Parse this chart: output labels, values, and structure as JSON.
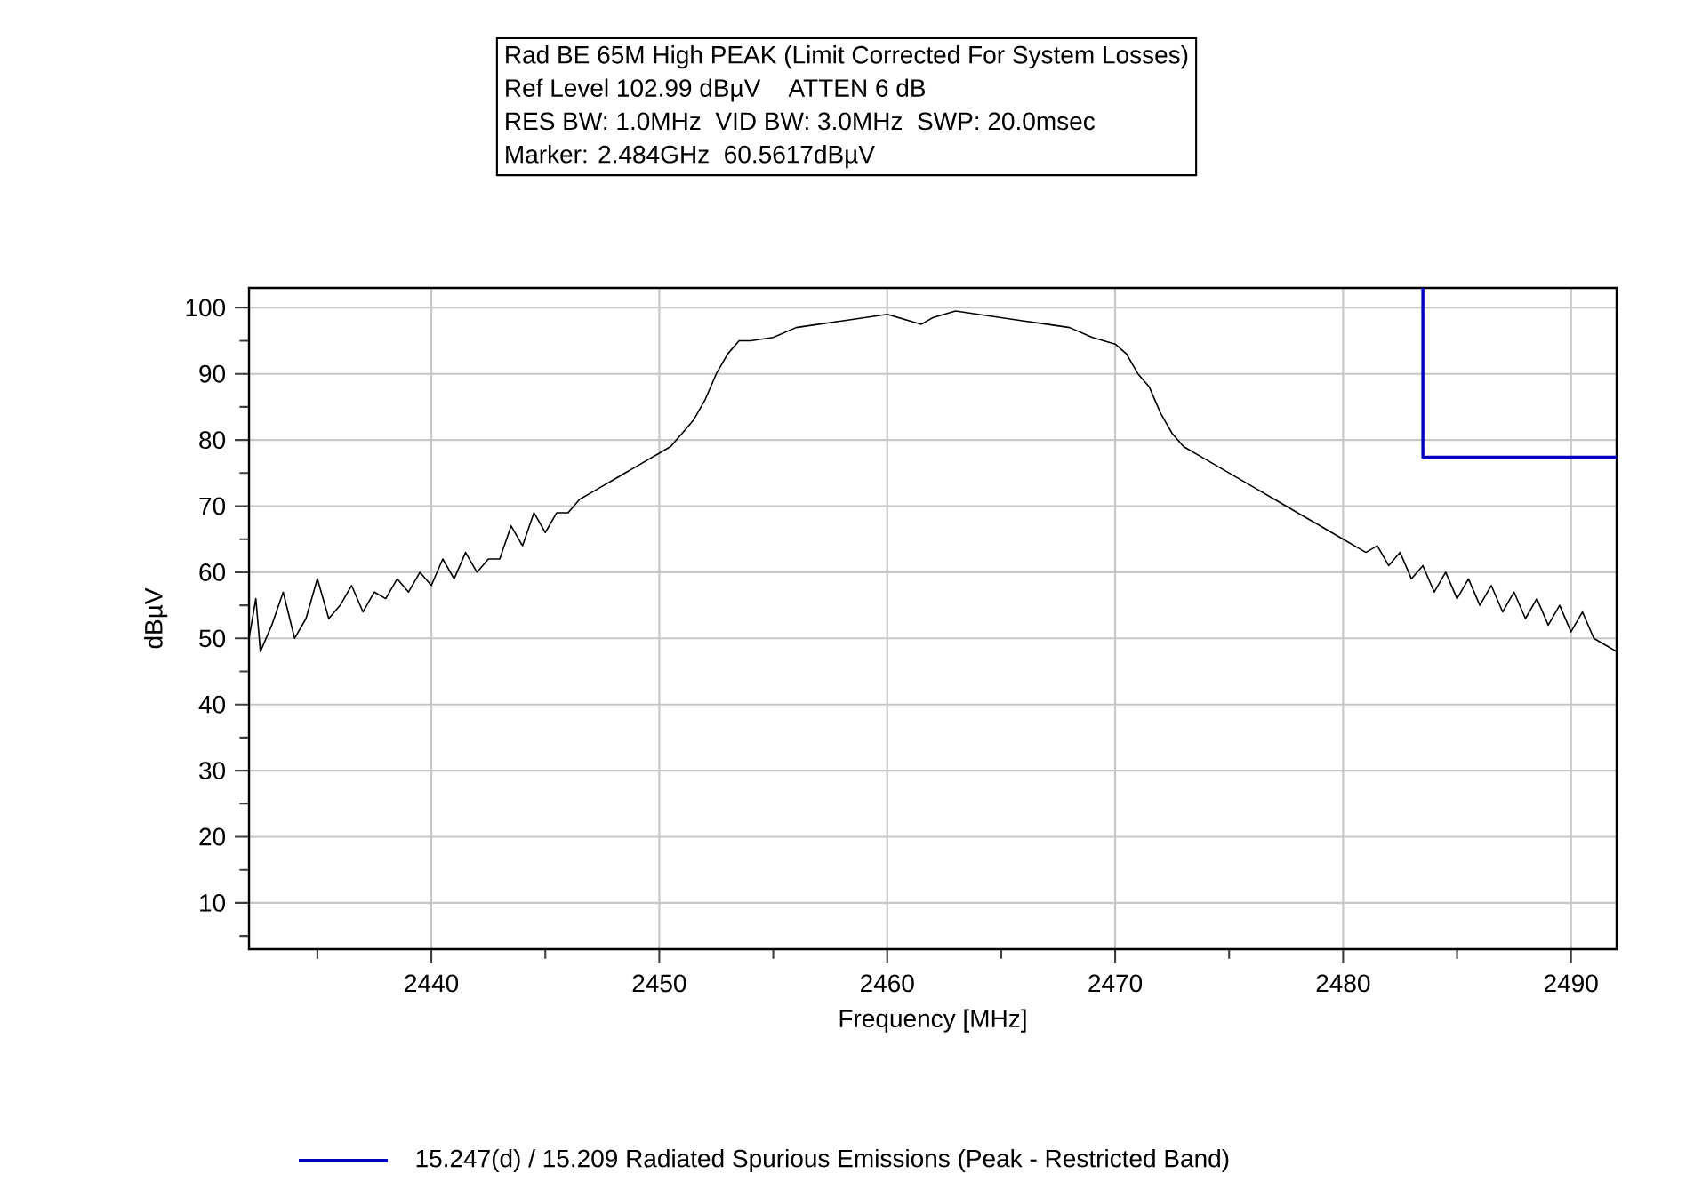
{
  "chart_data": {
    "type": "line",
    "title": "Rad BE 65M High PEAK (Limit Corrected For System Losses)",
    "annotations": [
      "Ref Level 102.99 dBµV    ATTEN 6 dB",
      "RES BW: 1.0MHz  VID BW: 3.0MHz  SWP: 20.0msec",
      "Marker: 2.484GHz  60.5617dBµV"
    ],
    "xlabel": "Frequency [MHz]",
    "ylabel": "dBµV",
    "xlim": [
      2432,
      2492
    ],
    "ylim": [
      3,
      103
    ],
    "xticks": [
      {
        "value": 2435,
        "label": null
      },
      2440,
      {
        "value": 2445,
        "label": null
      },
      2450,
      {
        "value": 2455,
        "label": null
      },
      2460,
      {
        "value": 2465,
        "label": null
      },
      2470,
      {
        "value": 2475,
        "label": null
      },
      2480,
      {
        "value": 2485,
        "label": null
      },
      2490
    ],
    "yticks": [
      {
        "value": 5,
        "label": null
      },
      10,
      {
        "value": 15,
        "label": null
      },
      20,
      {
        "value": 25,
        "label": null
      },
      30,
      {
        "value": 35,
        "label": null
      },
      40,
      {
        "value": 45,
        "label": null
      },
      50,
      {
        "value": 55,
        "label": null
      },
      60,
      {
        "value": 65,
        "label": null
      },
      70,
      {
        "value": 75,
        "label": null
      },
      80,
      {
        "value": 85,
        "label": null
      },
      90,
      {
        "value": 95,
        "label": null
      },
      100
    ],
    "grid": true,
    "legend": "bottom",
    "series": [
      {
        "color": "#000000",
        "x": [
          2432.0,
          2432.3,
          2432.5,
          2433,
          2433.5,
          2434,
          2434.5,
          2435,
          2435.5,
          2436,
          2436.5,
          2437,
          2437.5,
          2438,
          2438.5,
          2439,
          2439.5,
          2440,
          2440.5,
          2441,
          2441.5,
          2442,
          2442.5,
          2443,
          2443.5,
          2444,
          2444.5,
          2445,
          2445.5,
          2446,
          2446.5,
          2447,
          2447.5,
          2448,
          2448.5,
          2449,
          2449.5,
          2450,
          2450.5,
          2451,
          2451.5,
          2452,
          2452.5,
          2453,
          2453.5,
          2454,
          2455,
          2456,
          2457,
          2458,
          2459,
          2460,
          2461,
          2461.5,
          2462,
          2463,
          2464,
          2465,
          2466,
          2467,
          2468,
          2469,
          2470,
          2470.5,
          2471,
          2471.5,
          2472,
          2472.5,
          2473,
          2474,
          2475,
          2476,
          2477,
          2478,
          2479,
          2480,
          2480.5,
          2481,
          2481.5,
          2482,
          2482.5,
          2483,
          2483.5,
          2484,
          2484.5,
          2485,
          2485.5,
          2486,
          2486.5,
          2487,
          2487.5,
          2488,
          2488.5,
          2489,
          2489.5,
          2490,
          2490.5,
          2491,
          2491.5,
          2492
        ],
        "values": [
          50,
          56,
          48,
          52,
          57,
          50,
          53,
          59,
          53,
          55,
          58,
          54,
          57,
          56,
          59,
          57,
          60,
          58,
          62,
          59,
          63,
          60,
          62,
          62,
          67,
          64,
          69,
          66,
          69,
          69,
          71,
          72,
          73,
          74,
          75,
          76,
          77,
          78,
          79,
          81,
          83,
          86,
          90,
          93,
          95,
          95,
          95.5,
          97,
          97.5,
          98,
          98.5,
          99,
          98,
          97.5,
          98.5,
          99.5,
          99,
          98.5,
          98,
          97.5,
          97,
          95.5,
          94.5,
          93,
          90,
          88,
          84,
          81,
          79,
          77,
          75,
          73,
          71,
          69,
          67,
          65,
          64,
          63,
          64,
          61,
          63,
          59,
          61,
          57,
          60,
          56,
          59,
          55,
          58,
          54,
          57,
          53,
          56,
          52,
          55,
          51,
          54,
          50,
          49,
          48
        ]
      },
      {
        "name": "15.247(d) / 15.209 Radiated Spurious Emissions (Peak - Restricted Band)",
        "color": "#0000c0",
        "x": [
          2483.5,
          2483.5,
          2492
        ],
        "values": [
          103,
          77.4,
          77.4
        ]
      }
    ]
  }
}
